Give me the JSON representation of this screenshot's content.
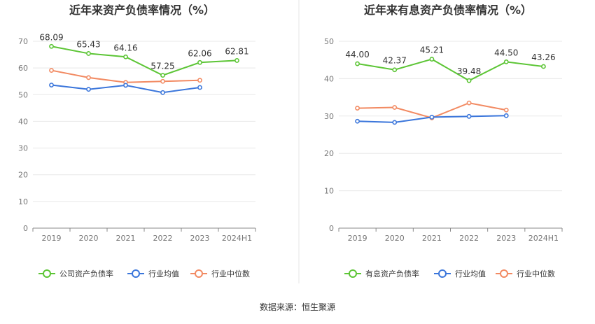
{
  "footer": {
    "source": "数据来源：恒生聚源"
  },
  "chart_data": [
    {
      "type": "line",
      "title": "近年来资产负债率情况（%）",
      "categories": [
        "2019",
        "2020",
        "2021",
        "2022",
        "2023",
        "2024H1"
      ],
      "ylim": [
        0,
        70
      ],
      "yticks": [
        "0",
        "10",
        "20",
        "30",
        "40",
        "50",
        "60",
        "70"
      ],
      "grid": true,
      "legend_position": "bottom",
      "series": [
        {
          "name": "公司资产负债率",
          "color": "#5cc535",
          "values": [
            68.09,
            65.43,
            64.16,
            57.25,
            62.06,
            62.81
          ],
          "labels": [
            "68.09",
            "65.43",
            "64.16",
            "57.25",
            "62.06",
            "62.81"
          ]
        },
        {
          "name": "行业均值",
          "color": "#3b76db",
          "values": [
            53.6,
            52.0,
            53.5,
            50.8,
            52.7,
            null
          ]
        },
        {
          "name": "行业中位数",
          "color": "#f28a62",
          "values": [
            59.1,
            56.4,
            54.6,
            55.0,
            55.4,
            null
          ]
        }
      ]
    },
    {
      "type": "line",
      "title": "近年来有息资产负债率情况（%）",
      "categories": [
        "2019",
        "2020",
        "2021",
        "2022",
        "2023",
        "2024H1"
      ],
      "ylim": [
        0,
        50
      ],
      "yticks": [
        "0",
        "10",
        "20",
        "30",
        "40",
        "50"
      ],
      "grid": true,
      "legend_position": "bottom",
      "series": [
        {
          "name": "有息资产负债率",
          "color": "#5cc535",
          "values": [
            44.0,
            42.37,
            45.21,
            39.48,
            44.5,
            43.26
          ],
          "labels": [
            "44.00",
            "42.37",
            "45.21",
            "39.48",
            "44.50",
            "43.26"
          ]
        },
        {
          "name": "行业均值",
          "color": "#3b76db",
          "values": [
            28.6,
            28.3,
            29.7,
            29.9,
            30.1,
            null
          ]
        },
        {
          "name": "行业中位数",
          "color": "#f28a62",
          "values": [
            32.1,
            32.3,
            29.5,
            33.5,
            31.6,
            null
          ]
        }
      ]
    }
  ]
}
